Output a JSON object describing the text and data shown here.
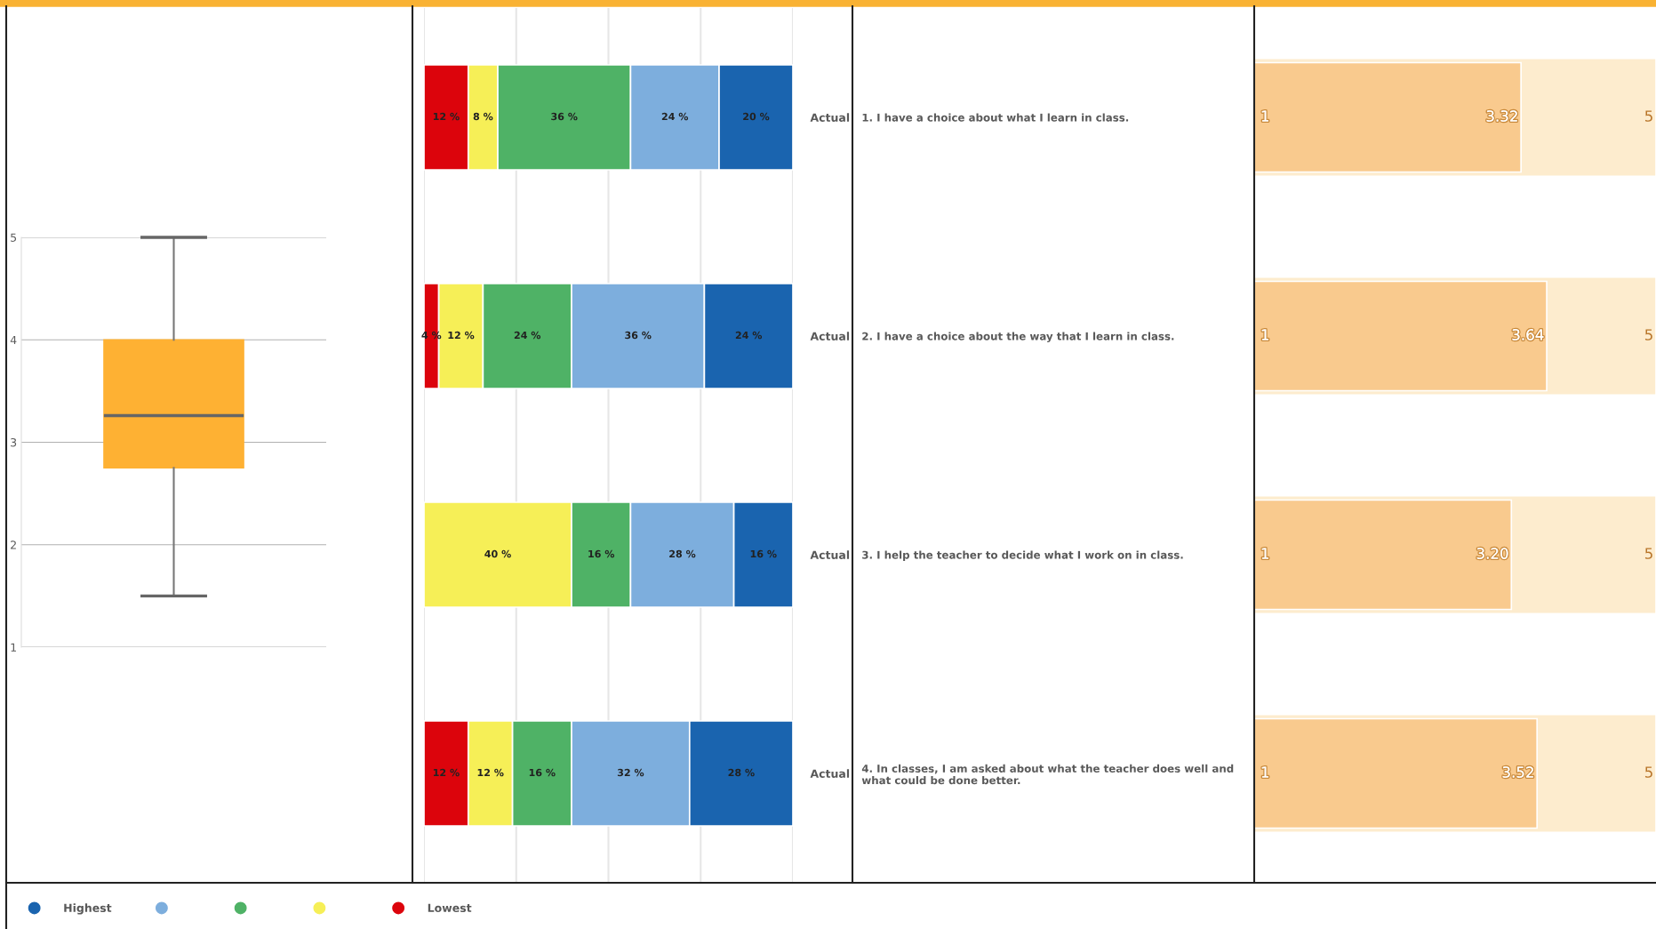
{
  "chart_data": [
    {
      "type": "box",
      "categories": [
        null
      ],
      "color": "#feb133",
      "boxes": [
        {
          "low": 1.5,
          "q1": 2.75,
          "median": 3.26,
          "q3": 4,
          "high": 5
        }
      ],
      "ylim": [
        1,
        5
      ],
      "yticks": [
        1,
        2,
        3,
        4,
        5
      ],
      "grid": "y"
    },
    {
      "type": "bar",
      "orientation": "horizontal",
      "stacked": true,
      "categories": [
        "Actual",
        "Actual",
        "Actual",
        "Actual"
      ],
      "xlim": [
        0,
        100
      ],
      "xticks": [
        {
          "value": 0,
          "label": null
        },
        {
          "value": 25,
          "label": null
        },
        {
          "value": 50,
          "label": null
        },
        {
          "value": 75,
          "label": null
        },
        {
          "value": 100,
          "label": null
        }
      ],
      "grid": "x",
      "tick_labels": "y",
      "legend": "bottom",
      "marker": "circle",
      "series": [
        {
          "name": "Lowest",
          "color": "#dc040c",
          "values": [
            12,
            4,
            0,
            12
          ],
          "value_labels": [
            "12 %",
            "4 %",
            null,
            "12 %"
          ]
        },
        {
          "color": "#f6ef57",
          "values": [
            8,
            12,
            40,
            12
          ],
          "value_labels": [
            "8 %",
            "12 %",
            "40 %",
            "12 %"
          ]
        },
        {
          "color": "#4fb266",
          "values": [
            36,
            24,
            16,
            16
          ],
          "value_labels": [
            "36 %",
            "24 %",
            "16 %",
            "16 %"
          ]
        },
        {
          "color": "#7daedd",
          "values": [
            24,
            36,
            28,
            32
          ],
          "value_labels": [
            "24 %",
            "36 %",
            "28 %",
            "32 %"
          ]
        },
        {
          "name": "Highest",
          "color": "#1a64af",
          "values": [
            20,
            24,
            16,
            28
          ],
          "value_labels": [
            "20 %",
            "24 %",
            "16 %",
            "28 %"
          ]
        }
      ]
    },
    {
      "type": "bar",
      "orientation": "horizontal",
      "categories": [
        "1. I have a choice about what I learn in class.",
        "2. I have a choice about the way that I learn in class.",
        "3. I help the teacher to decide what I work on in class.",
        "4. In classes, I am asked about what the teacher does well and\nwhat could be done better."
      ],
      "xlim": [
        0,
        5
      ],
      "tick_labels": "y",
      "series": [
        {
          "color": "#fdecce",
          "values": [
            5,
            5,
            5,
            5
          ],
          "value_labels": [
            "5",
            "5",
            "5",
            "5"
          ]
        },
        {
          "color": "#f9ca8e",
          "values": [
            3.32,
            3.64,
            3.2,
            3.52
          ],
          "value_labels": [
            "3.32",
            "3.64",
            "3.20",
            "3.52"
          ]
        }
      ],
      "annotations": [
        "1",
        "1",
        "1",
        "1"
      ]
    }
  ]
}
